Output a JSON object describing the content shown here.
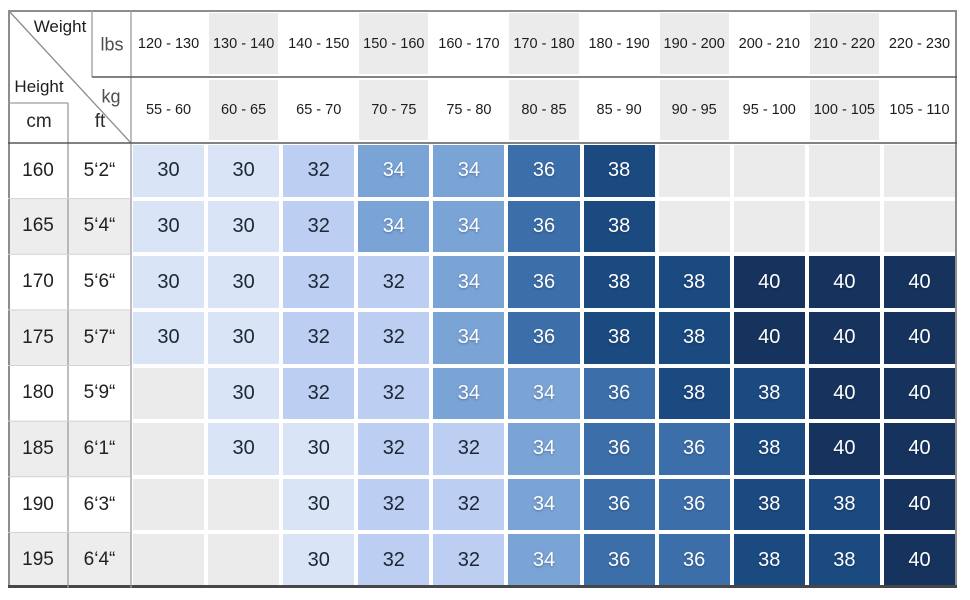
{
  "chart_data": {
    "type": "table",
    "description": "Size chart matrix mapping body height and weight ranges to sizes 30-40",
    "corner_labels": {
      "weight": "Weight",
      "height": "Height",
      "lbs": "lbs",
      "kg": "kg",
      "cm": "cm",
      "ft": "ft"
    },
    "weight_lbs_ranges": [
      "120 - 130",
      "130 - 140",
      "140 - 150",
      "150 - 160",
      "160 - 170",
      "170 - 180",
      "180 - 190",
      "190 - 200",
      "200 - 210",
      "210 - 220",
      "220 - 230"
    ],
    "weight_kg_ranges": [
      "55 - 60",
      "60 - 65",
      "65 - 70",
      "70 - 75",
      "75 - 80",
      "80 - 85",
      "85 - 90",
      "90 - 95",
      "95 - 100",
      "100 - 105",
      "105 - 110"
    ],
    "height_rows": [
      {
        "cm": "160",
        "ft": "5‘2“",
        "sizes": [
          30,
          30,
          32,
          34,
          34,
          36,
          38,
          null,
          null,
          null,
          null
        ]
      },
      {
        "cm": "165",
        "ft": "5‘4“",
        "sizes": [
          30,
          30,
          32,
          34,
          34,
          36,
          38,
          null,
          null,
          null,
          null
        ]
      },
      {
        "cm": "170",
        "ft": "5‘6“",
        "sizes": [
          30,
          30,
          32,
          32,
          34,
          36,
          38,
          38,
          40,
          40,
          40
        ]
      },
      {
        "cm": "175",
        "ft": "5‘7“",
        "sizes": [
          30,
          30,
          32,
          32,
          34,
          36,
          38,
          38,
          40,
          40,
          40
        ]
      },
      {
        "cm": "180",
        "ft": "5‘9“",
        "sizes": [
          null,
          30,
          32,
          32,
          34,
          34,
          36,
          38,
          38,
          40,
          40
        ]
      },
      {
        "cm": "185",
        "ft": "6‘1“",
        "sizes": [
          null,
          30,
          30,
          32,
          32,
          34,
          36,
          36,
          38,
          40,
          40
        ]
      },
      {
        "cm": "190",
        "ft": "6‘3“",
        "sizes": [
          null,
          null,
          30,
          32,
          32,
          34,
          36,
          36,
          38,
          38,
          40
        ]
      },
      {
        "cm": "195",
        "ft": "6‘4“",
        "sizes": [
          null,
          null,
          30,
          32,
          32,
          34,
          36,
          36,
          38,
          38,
          40
        ]
      }
    ],
    "size_palette": {
      "30": {
        "bg": "#d9e5f7",
        "text": "#1b2733"
      },
      "32": {
        "bg": "#bccff2",
        "text": "#1b2733"
      },
      "34": {
        "bg": "#7aa3d6",
        "text": "#ffffff"
      },
      "36": {
        "bg": "#3c6fa9",
        "text": "#ffffff"
      },
      "38": {
        "bg": "#1b4a80",
        "text": "#ffffff"
      },
      "40": {
        "bg": "#16335d",
        "text": "#ffffff"
      }
    },
    "empty_cell_bg": "#ebebeb",
    "header_alt_bg": "#ebebeb",
    "zebra_row_bg": "#ededed",
    "line_colors": {
      "strong": "#57585a",
      "medium": "#9c9c9c",
      "faint": "#d2d2d2",
      "outer": "#8d8d8d",
      "outer_bottom": "#474747"
    }
  }
}
